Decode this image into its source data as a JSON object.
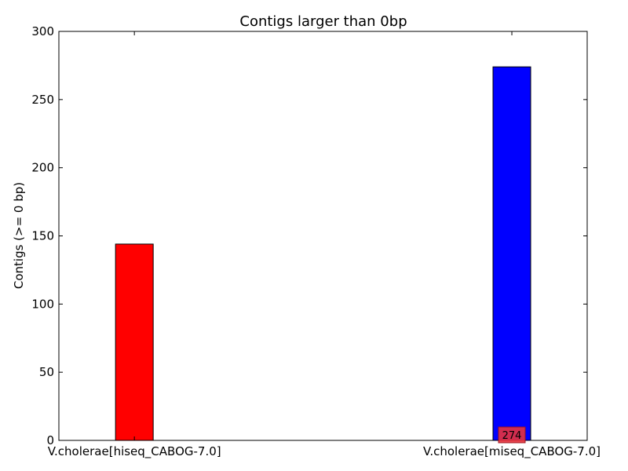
{
  "chart_data": {
    "type": "bar",
    "title": "Contigs larger than 0bp",
    "xlabel": "",
    "ylabel": "Contigs (>= 0 bp)",
    "categories": [
      "V.cholerae[hiseq_CABOG-7.0]",
      "V.cholerae[miseq_CABOG-7.0]"
    ],
    "values": [
      144,
      274
    ],
    "colors": [
      "#ff0000",
      "#0000ff"
    ],
    "ylim": [
      0,
      300
    ],
    "yticks": [
      0,
      50,
      100,
      150,
      200,
      250,
      300
    ],
    "grid": false,
    "annotations": [
      {
        "text": "274",
        "category_index": 1,
        "y": 0,
        "box_color": "#e8323c"
      }
    ]
  }
}
